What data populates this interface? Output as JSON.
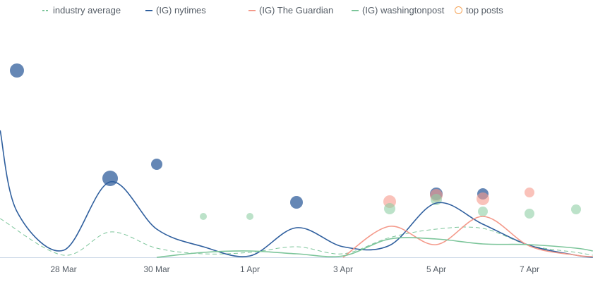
{
  "chart_data": {
    "type": "line",
    "title": "",
    "xlabel": "",
    "ylabel": "",
    "x_ticks": [
      "28 Mar",
      "30 Mar",
      "1 Apr",
      "3 Apr",
      "5 Apr",
      "7 Apr"
    ],
    "x_tick_days": [
      1,
      3,
      5,
      7,
      9,
      11
    ],
    "x_range_days": [
      -0.36,
      12.36
    ],
    "x_day0": "27 Mar",
    "ylim": [
      0,
      290
    ],
    "grid": false,
    "legend_position": "top",
    "series": [
      {
        "name": "industry average",
        "color": "#7cc59a",
        "dashed": true,
        "x": [
          -0.36,
          1,
          2,
          3,
          4,
          5,
          6,
          7,
          8,
          9,
          10,
          11,
          12,
          12.36
        ],
        "y": [
          55,
          3,
          36,
          13,
          5,
          7,
          15,
          5,
          28,
          40,
          41,
          17,
          7,
          3
        ]
      },
      {
        "name": "(IG) nytimes",
        "color": "#2f5f9e",
        "dashed": false,
        "x": [
          -0.36,
          0,
          1,
          2,
          3,
          4,
          5,
          6,
          7,
          8,
          9,
          10,
          11,
          12,
          12.36
        ],
        "y": [
          180,
          65,
          10,
          107,
          40,
          15,
          2,
          42,
          15,
          17,
          77,
          47,
          17,
          3,
          0
        ]
      },
      {
        "name": "(IG) The Guardian",
        "color": "#f4998a",
        "dashed": false,
        "x": [
          7,
          8,
          9,
          10,
          11,
          12,
          12.36
        ],
        "y": [
          0,
          44,
          18,
          58,
          16,
          3,
          1
        ]
      },
      {
        "name": "(IG) washingtonpost",
        "color": "#7cc59a",
        "dashed": false,
        "x": [
          3,
          4,
          5,
          6,
          7,
          8,
          9,
          10,
          11,
          12,
          12.36
        ],
        "y": [
          0,
          7,
          9,
          5,
          2,
          26,
          26,
          19,
          18,
          13,
          9
        ]
      }
    ],
    "top_posts": {
      "name": "top posts",
      "legend_color": "#f5a55a",
      "points": [
        {
          "series": "(IG) nytimes",
          "day": 0,
          "y": 265,
          "size": 10
        },
        {
          "series": "(IG) nytimes",
          "day": 2,
          "y": 112,
          "size": 11
        },
        {
          "series": "(IG) nytimes",
          "day": 3,
          "y": 132,
          "size": 8
        },
        {
          "series": "(IG) nytimes",
          "day": 6,
          "y": 78,
          "size": 9
        },
        {
          "series": "(IG) nytimes",
          "day": 9,
          "y": 90,
          "size": 9
        },
        {
          "series": "(IG) nytimes",
          "day": 10,
          "y": 90,
          "size": 8
        },
        {
          "series": "(IG) The Guardian",
          "day": 8,
          "y": 79,
          "size": 9
        },
        {
          "series": "(IG) The Guardian",
          "day": 9,
          "y": 88,
          "size": 9
        },
        {
          "series": "(IG) The Guardian",
          "day": 10,
          "y": 83,
          "size": 9
        },
        {
          "series": "(IG) The Guardian",
          "day": 11,
          "y": 92,
          "size": 7
        },
        {
          "series": "(IG) washingtonpost",
          "day": 4,
          "y": 58,
          "size": 5
        },
        {
          "series": "(IG) washingtonpost",
          "day": 5,
          "y": 58,
          "size": 5
        },
        {
          "series": "(IG) washingtonpost",
          "day": 8,
          "y": 69,
          "size": 8
        },
        {
          "series": "(IG) washingtonpost",
          "day": 9,
          "y": 82,
          "size": 8
        },
        {
          "series": "(IG) washingtonpost",
          "day": 10,
          "y": 65,
          "size": 7
        },
        {
          "series": "(IG) washingtonpost",
          "day": 11,
          "y": 62,
          "size": 7
        },
        {
          "series": "(IG) washingtonpost",
          "day": 12,
          "y": 68,
          "size": 7
        }
      ]
    }
  },
  "legend": [
    "industry average",
    "(IG) nytimes",
    "(IG) The Guardian",
    "(IG) washingtonpost",
    "top posts"
  ]
}
